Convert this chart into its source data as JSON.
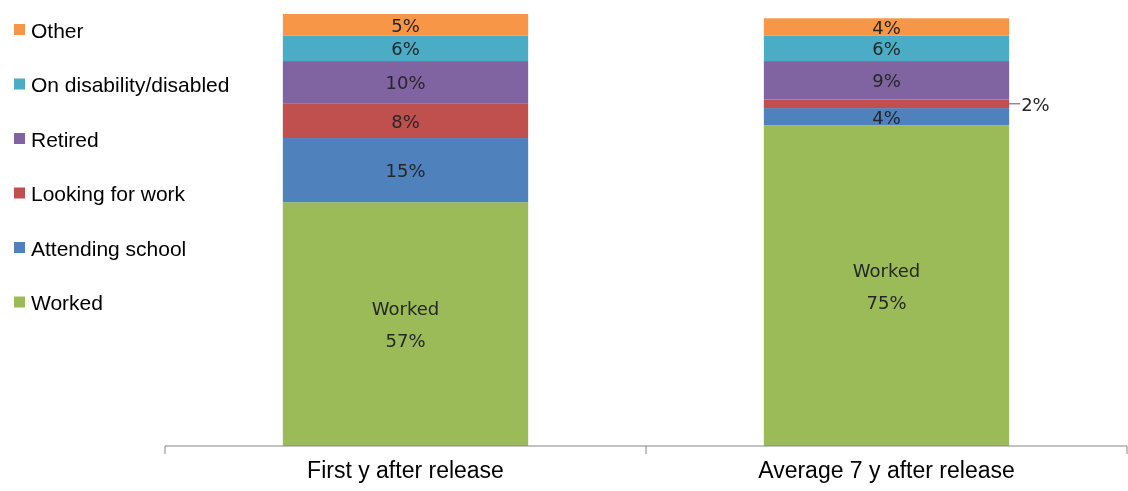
{
  "chart_data": {
    "type": "bar",
    "stacked": true,
    "categories": [
      "First y after release",
      "Average 7 y after release"
    ],
    "ylim": [
      0,
      101
    ],
    "legend": "left",
    "series": [
      {
        "name": "Worked",
        "color": "#9bbb59",
        "values": [
          57,
          75
        ],
        "value_labels": [
          "Worked\n57%",
          "Worked\n75%"
        ]
      },
      {
        "name": "Attending school",
        "color": "#4f81bd",
        "values": [
          15,
          4
        ],
        "value_labels": [
          "15%",
          "4%"
        ]
      },
      {
        "name": "Looking for work",
        "color": "#c0504d",
        "values": [
          8,
          2
        ],
        "value_labels": [
          "8%",
          "2%"
        ]
      },
      {
        "name": "Retired",
        "color": "#8064a2",
        "values": [
          10,
          9
        ],
        "value_labels": [
          "10%",
          "9%"
        ]
      },
      {
        "name": "On disability/disabled",
        "color": "#4bacc6",
        "values": [
          6,
          6
        ],
        "value_labels": [
          "6%",
          "6%"
        ]
      },
      {
        "name": "Other",
        "color": "#f79646",
        "values": [
          5,
          4
        ],
        "value_labels": [
          "5%",
          "4%"
        ]
      }
    ]
  }
}
